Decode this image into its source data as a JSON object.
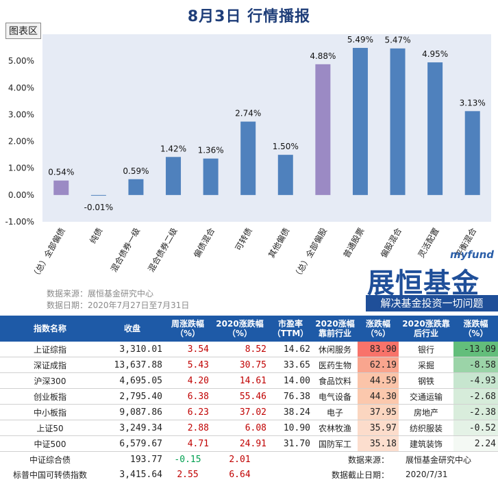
{
  "header": {
    "title": "8月3日  行情播报",
    "chart_button": "图表区"
  },
  "chart_data": {
    "type": "bar",
    "categories": [
      "（总）全部偏债",
      "纯债",
      "混合债券一级",
      "混合债券二级",
      "偏债混合",
      "可转债",
      "其他偏债",
      "（总）全部偏股",
      "普通股票",
      "偏股混合",
      "灵活配置",
      "平衡混合"
    ],
    "values": [
      0.54,
      -0.01,
      0.59,
      1.42,
      1.36,
      2.74,
      1.5,
      4.88,
      5.49,
      5.47,
      4.95,
      3.13
    ],
    "data_labels": [
      "0.54%",
      "-0.01%",
      "0.59%",
      "1.42%",
      "1.36%",
      "2.74%",
      "1.50%",
      "4.88%",
      "5.49%",
      "5.47%",
      "4.95%",
      "3.13%"
    ],
    "highlight_indices": [
      0,
      7
    ],
    "ylim": [
      -1,
      6
    ],
    "yticks": [
      "-1.00%",
      "0.00%",
      "1.00%",
      "2.00%",
      "3.00%",
      "4.00%",
      "5.00%"
    ],
    "colors": {
      "bar": "#4f81bd",
      "highlight": "#9b8ac4",
      "plot_bg": "#e6ebf5"
    }
  },
  "source": {
    "line1": "数据来源：展恒基金研究中心",
    "line2": "数据日期：2020年7月27日至7月31日"
  },
  "logo": {
    "brand_en": "myfund",
    "brand": "展恒基金",
    "slogan": "解决基金投资一切问题"
  },
  "table": {
    "headers": [
      "指数名称",
      "收盘",
      "周涨跌幅（%）",
      "2020涨跌幅（%）",
      "市盈率（TTM）",
      "2020涨幅靠前行业",
      "涨跌幅（%）",
      "2020涨跌靠后行业",
      "涨跌幅（%）"
    ],
    "rows": [
      {
        "name": "上证综指",
        "close": "3,310.01",
        "week": "3.54",
        "ytd": "8.52",
        "pe": "14.62",
        "top": "休闲服务",
        "top_v": "83.90",
        "bot": "银行",
        "bot_v": "-13.09"
      },
      {
        "name": "深证成指",
        "close": "13,637.88",
        "week": "5.43",
        "ytd": "30.75",
        "pe": "33.65",
        "top": "医药生物",
        "top_v": "62.19",
        "bot": "采掘",
        "bot_v": "-8.58"
      },
      {
        "name": "沪深300",
        "close": "4,695.05",
        "week": "4.20",
        "ytd": "14.61",
        "pe": "14.00",
        "top": "食品饮料",
        "top_v": "44.59",
        "bot": "钢铁",
        "bot_v": "-4.93"
      },
      {
        "name": "创业板指",
        "close": "2,795.40",
        "week": "6.38",
        "ytd": "55.46",
        "pe": "76.38",
        "top": "电气设备",
        "top_v": "44.30",
        "bot": "交通运输",
        "bot_v": "-2.68"
      },
      {
        "name": "中小板指",
        "close": "9,087.86",
        "week": "6.23",
        "ytd": "37.02",
        "pe": "38.24",
        "top": "电子",
        "top_v": "37.95",
        "bot": "房地产",
        "bot_v": "-2.38"
      },
      {
        "name": "上证50",
        "close": "3,249.34",
        "week": "2.88",
        "ytd": "6.08",
        "pe": "10.90",
        "top": "农林牧渔",
        "top_v": "35.97",
        "bot": "纺织服装",
        "bot_v": "-0.52"
      },
      {
        "name": "中证500",
        "close": "6,579.67",
        "week": "4.71",
        "ytd": "24.91",
        "pe": "31.70",
        "top": "国防军工",
        "top_v": "35.18",
        "bot": "建筑装饰",
        "bot_v": "2.24"
      }
    ],
    "extra_rows": [
      {
        "name": "中证综合债",
        "close": "193.77",
        "week": "-0.15",
        "ytd": "2.01",
        "note_label": "数据来源：",
        "note_value": "展恒基金研究中心"
      },
      {
        "name": "标普中国可转债指数",
        "close": "3,415.64",
        "week": "2.55",
        "ytd": "6.64",
        "note_label": "数据截止日期：",
        "note_value": "2020/7/31"
      }
    ]
  }
}
